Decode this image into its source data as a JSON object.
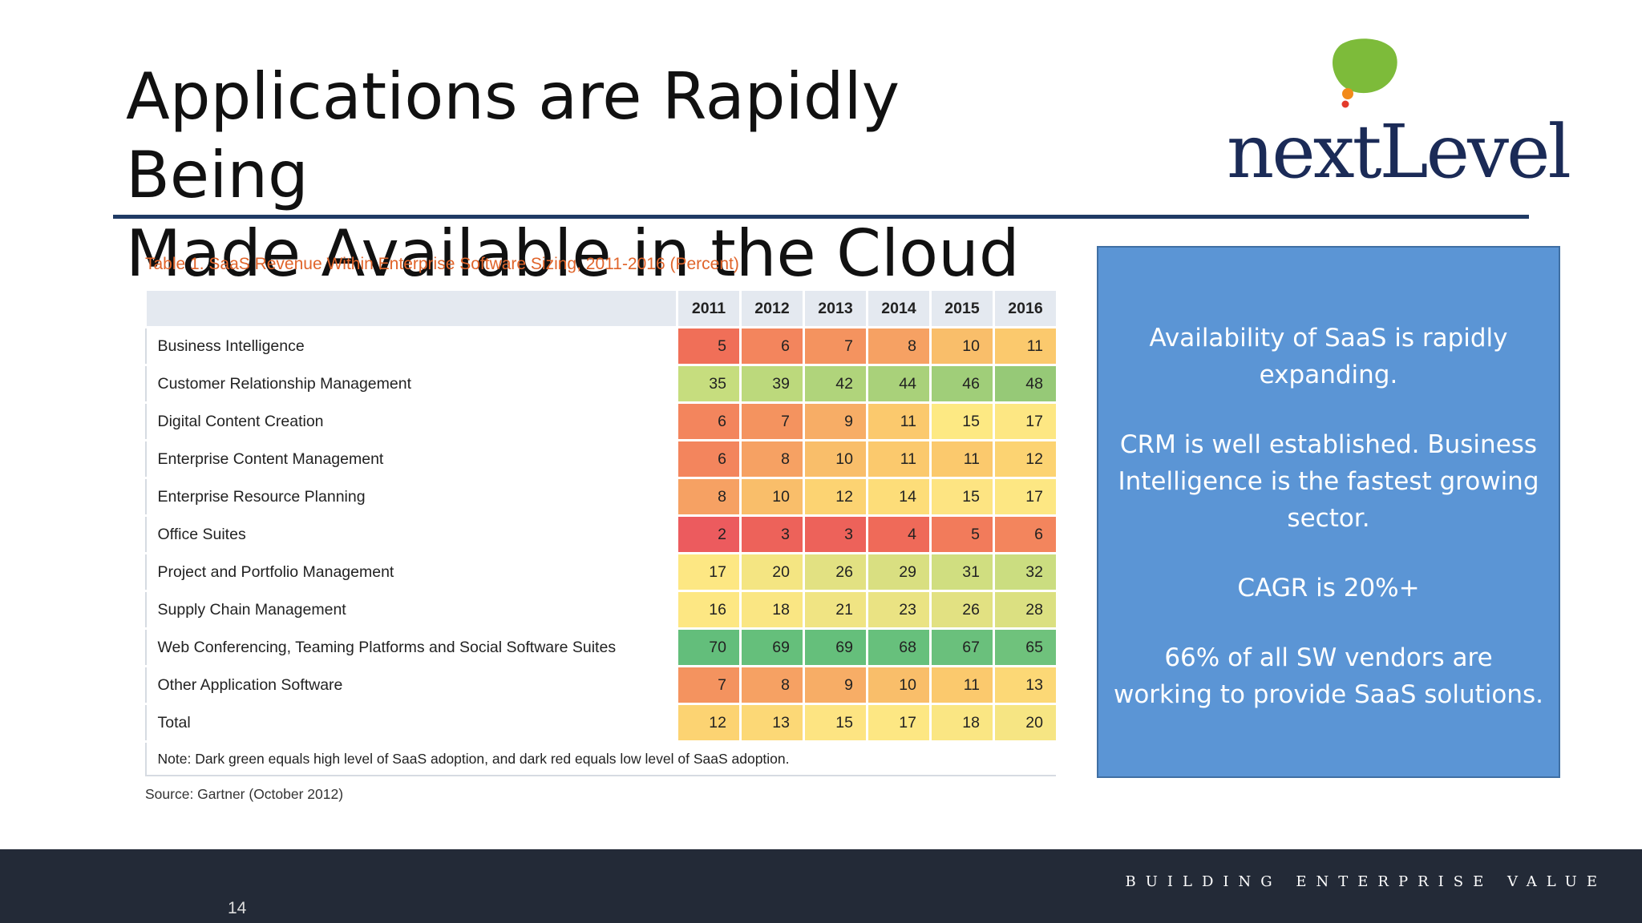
{
  "slide": {
    "title_line1": "Applications are Rapidly Being",
    "title_line2": "Made Available in the Cloud"
  },
  "logo": {
    "text": "nextLevel"
  },
  "table": {
    "caption": "Table 1. SaaS Revenue Within Enterprise Software Sizing, 2011-2016 (Percent)",
    "columns": [
      "2011",
      "2012",
      "2013",
      "2014",
      "2015",
      "2016"
    ],
    "rows": [
      {
        "label": "Business Intelligence",
        "values": [
          "5",
          "6",
          "7",
          "8",
          "10",
          "11"
        ],
        "colors": [
          "#f06f58",
          "#f3855d",
          "#f4935f",
          "#f6a163",
          "#f9be6a",
          "#fbc96d"
        ]
      },
      {
        "label": "Customer Relationship Management",
        "values": [
          "35",
          "39",
          "42",
          "44",
          "46",
          "48"
        ],
        "colors": [
          "#c6dd7e",
          "#bcd97c",
          "#b0d47b",
          "#a9d17a",
          "#a0ce79",
          "#96c977"
        ]
      },
      {
        "label": "Digital Content Creation",
        "values": [
          "6",
          "7",
          "9",
          "11",
          "15",
          "17"
        ],
        "colors": [
          "#f3855d",
          "#f4935f",
          "#f7ad66",
          "#fbc96d",
          "#fde983",
          "#fde783"
        ]
      },
      {
        "label": "Enterprise Content Management",
        "values": [
          "6",
          "8",
          "10",
          "11",
          "11",
          "12"
        ],
        "colors": [
          "#f3855d",
          "#f6a163",
          "#f9be6a",
          "#fbc96d",
          "#fbc96d",
          "#fcd372"
        ]
      },
      {
        "label": "Enterprise Resource Planning",
        "values": [
          "8",
          "10",
          "12",
          "14",
          "15",
          "17"
        ],
        "colors": [
          "#f6a163",
          "#f9be6a",
          "#fcd372",
          "#fddd79",
          "#fde482",
          "#fde783"
        ]
      },
      {
        "label": "Office Suites",
        "values": [
          "2",
          "3",
          "3",
          "4",
          "5",
          "6"
        ],
        "colors": [
          "#ec5b5e",
          "#ed625a",
          "#ed625a",
          "#ef6a59",
          "#f27b5b",
          "#f3855d"
        ]
      },
      {
        "label": "Project and Portfolio Management",
        "values": [
          "17",
          "20",
          "26",
          "29",
          "31",
          "32"
        ],
        "colors": [
          "#fde783",
          "#f4e582",
          "#e2e182",
          "#d9df81",
          "#d0de80",
          "#cbdd80"
        ]
      },
      {
        "label": "Supply Chain Management",
        "values": [
          "16",
          "18",
          "21",
          "23",
          "26",
          "28"
        ],
        "colors": [
          "#fde783",
          "#fae683",
          "#f0e483",
          "#eae383",
          "#e2e182",
          "#dbe081"
        ]
      },
      {
        "label": "Web Conferencing, Teaming Platforms and Social Software Suites",
        "values": [
          "70",
          "69",
          "69",
          "68",
          "67",
          "65"
        ],
        "colors": [
          "#63be7b",
          "#65bf7b",
          "#65bf7b",
          "#67c07c",
          "#6ac07c",
          "#6fc27c"
        ]
      },
      {
        "label": "Other Application Software",
        "values": [
          "7",
          "8",
          "9",
          "10",
          "11",
          "13"
        ],
        "colors": [
          "#f4935f",
          "#f6a163",
          "#f7ad66",
          "#f9be6a",
          "#fbc96d",
          "#fcd876"
        ]
      },
      {
        "label": "Total",
        "values": [
          "12",
          "13",
          "15",
          "17",
          "18",
          "20"
        ],
        "colors": [
          "#fcd372",
          "#fcd876",
          "#fde482",
          "#fde783",
          "#fae683",
          "#f6e583"
        ]
      }
    ],
    "note": "Note: Dark green equals high level of SaaS adoption, and dark red equals low level of SaaS adoption.",
    "source": "Source: Gartner (October 2012)"
  },
  "info_box": {
    "lines": [
      "Availability of SaaS is rapidly expanding.",
      "CRM is well established.  Business Intelligence is the fastest growing sector.",
      "CAGR is 20%+",
      "66% of all SW vendors are working to provide SaaS solutions."
    ]
  },
  "footer": {
    "tagline": "BUILDING ENTERPRISE VALUE",
    "page_number": "14"
  }
}
